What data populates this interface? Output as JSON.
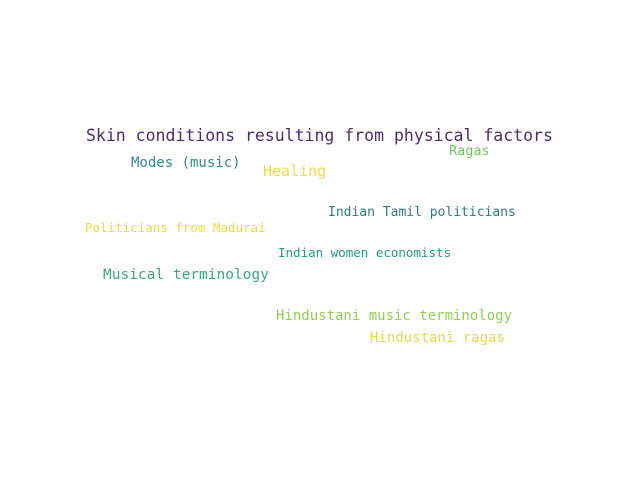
{
  "words": [
    {
      "text": "Skin conditions resulting from physical factors",
      "color": "#4a2f70"
    },
    {
      "text": "Modes (music)",
      "color": "#2e8b8f"
    },
    {
      "text": "Healing",
      "color": "#f2da3a"
    },
    {
      "text": "Ragas",
      "color": "#6cc463"
    },
    {
      "text": "Indian Tamil politicians",
      "color": "#2a7b8c"
    },
    {
      "text": "Politicians from Madurai",
      "color": "#efd93a"
    },
    {
      "text": "Indian women economists",
      "color": "#229a8a"
    },
    {
      "text": "Musical terminology",
      "color": "#3aa87f"
    },
    {
      "text": "Hindustani music terminology",
      "color": "#8fd14f"
    },
    {
      "text": "Hindustani ragas",
      "color": "#e9d843"
    }
  ]
}
